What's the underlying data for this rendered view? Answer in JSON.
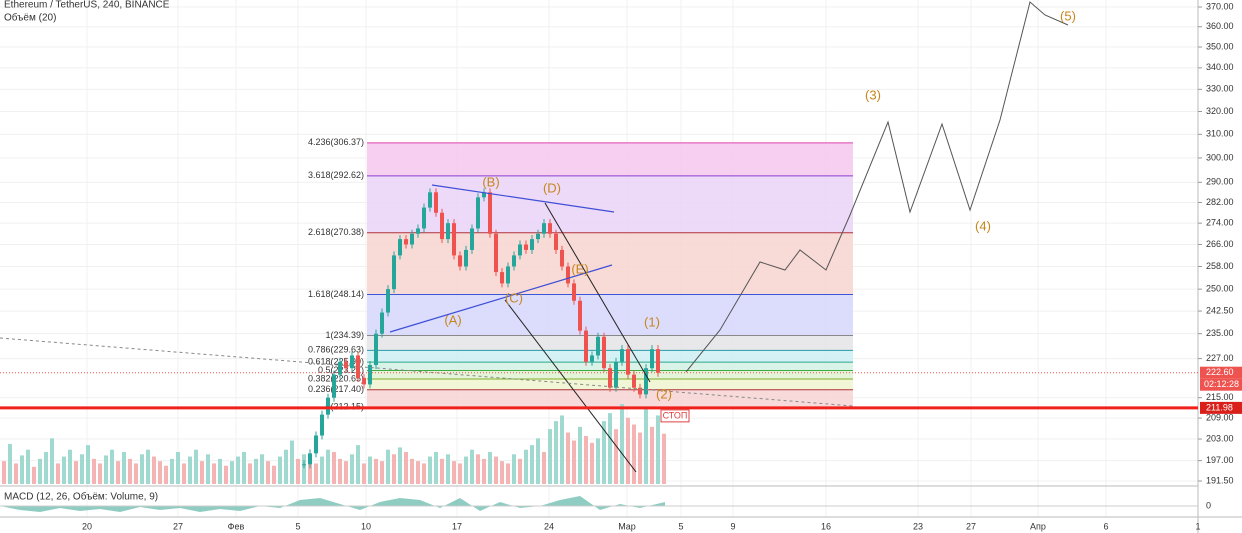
{
  "header": {
    "symbol": "Ethereum / TetherUS, 240, BINANCE",
    "volume_label": "Объём (20)",
    "macd_label": "MACD (12, 26, Объём: Volume, 9)"
  },
  "price_axis": {
    "log": true,
    "ylim": [
      191.5,
      370
    ],
    "ticks": [
      {
        "value": 370,
        "label": "370.00"
      },
      {
        "value": 360,
        "label": "360.00"
      },
      {
        "value": 350,
        "label": "350.00"
      },
      {
        "value": 340,
        "label": "340.00"
      },
      {
        "value": 330,
        "label": "330.00"
      },
      {
        "value": 320,
        "label": "320.00"
      },
      {
        "value": 310,
        "label": "310.00"
      },
      {
        "value": 300,
        "label": "300.00"
      },
      {
        "value": 290,
        "label": "290.00"
      },
      {
        "value": 282,
        "label": "282.00"
      },
      {
        "value": 274,
        "label": "274.00"
      },
      {
        "value": 266,
        "label": "266.00"
      },
      {
        "value": 258,
        "label": "258.00"
      },
      {
        "value": 250,
        "label": "250.00"
      },
      {
        "value": 242.5,
        "label": "242.50"
      },
      {
        "value": 235,
        "label": "235.00"
      },
      {
        "value": 227,
        "label": "227.00"
      },
      {
        "value": 215,
        "label": "215.00"
      },
      {
        "value": 209,
        "label": "209.00"
      },
      {
        "value": 203,
        "label": "203.00"
      },
      {
        "value": 197,
        "label": "197.00"
      },
      {
        "value": 191.5,
        "label": "191.50"
      }
    ],
    "macd_zero": "0"
  },
  "tags": {
    "last_price": {
      "value": 222.6,
      "label": "222.60"
    },
    "countdown": "02:12:28",
    "stop_price": {
      "value": 211.98,
      "label": "211.98"
    },
    "stop_text": "СТОП"
  },
  "date_axis": [
    "20",
    "27",
    "Фев",
    "5",
    "10",
    "17",
    "24",
    "Мар",
    "5",
    "9",
    "16",
    "23",
    "27",
    "Апр",
    "6",
    "1"
  ],
  "fib": [
    {
      "label": "4.236(306.37)",
      "value": 306.37,
      "color": "#e040b0",
      "fill": "#f6c8ee"
    },
    {
      "label": "3.618(292.62)",
      "value": 292.62,
      "color": "#8a3fd1",
      "fill": "#ead2f7"
    },
    {
      "label": "2.618(270.38)",
      "value": 270.38,
      "color": "#b0343a",
      "fill": "#f7d4cf"
    },
    {
      "label": "1.618(248.14)",
      "value": 248.14,
      "color": "#3a57d8",
      "fill": "#d6d6fb"
    },
    {
      "label": "1(234.39)",
      "value": 234.39,
      "color": "#888888",
      "fill": "#e4e4e8"
    },
    {
      "label": "0.786(229.63)",
      "value": 229.63,
      "color": "#2a9aa8",
      "fill": "#cdeef3"
    },
    {
      "label": "0.618(225.90)",
      "value": 225.9,
      "color": "#2aa88a",
      "fill": "#d2f1e4"
    },
    {
      "label": "0.5(223.27)",
      "value": 223.27,
      "color": "#3daa3d",
      "fill": "#dff2d2"
    },
    {
      "label": "0.382(220.65)",
      "value": 220.65,
      "color": "#7fae2a",
      "fill": "#eef4cf"
    },
    {
      "label": "0.236(217.40)",
      "value": 217.4,
      "color": "#b0343a",
      "fill": "#f7d4d4"
    },
    {
      "label": "0(212.15)",
      "value": 212.15,
      "color": "#888888"
    }
  ],
  "waves": [
    "(A)",
    "(B)",
    "(C)",
    "(D)",
    "(E)",
    "(1)",
    "(2)",
    "(3)",
    "(4)",
    "(5)"
  ],
  "candles": [
    196,
    199,
    204,
    210,
    215,
    222,
    226,
    224,
    228,
    221,
    219,
    225,
    235,
    242,
    250,
    262,
    268,
    266,
    270,
    272,
    280,
    286,
    278,
    268,
    274,
    262,
    258,
    264,
    272,
    284,
    286,
    270,
    256,
    252,
    258,
    262,
    266,
    264,
    268,
    270,
    274,
    270,
    264,
    258,
    252,
    246,
    236,
    226,
    228,
    234,
    224,
    218,
    226,
    230,
    222,
    218,
    216,
    224,
    230,
    222.6
  ],
  "volumes": [
    20,
    35,
    18,
    25,
    30,
    15,
    22,
    28,
    40,
    18,
    24,
    30,
    20,
    26,
    34,
    22,
    18,
    25,
    30,
    20,
    28,
    22,
    18,
    26,
    30,
    24,
    20,
    16,
    22,
    28,
    18,
    24,
    30,
    20,
    26,
    18,
    22,
    16,
    20,
    24,
    28,
    18,
    22,
    26,
    20,
    16,
    24,
    30,
    38,
    22,
    26,
    20,
    18,
    24,
    30,
    28,
    22,
    20,
    26,
    34,
    18,
    24,
    22,
    20,
    30,
    26,
    32,
    28,
    22,
    20,
    18,
    24,
    28,
    22,
    26,
    20,
    18,
    24,
    30,
    26,
    22,
    28,
    24,
    20,
    18,
    26,
    22,
    30,
    34,
    40,
    28,
    48,
    55,
    60,
    45,
    38,
    50,
    42,
    36,
    40,
    55,
    62,
    48,
    70,
    58,
    52,
    45,
    66,
    50,
    60,
    44
  ]
}
